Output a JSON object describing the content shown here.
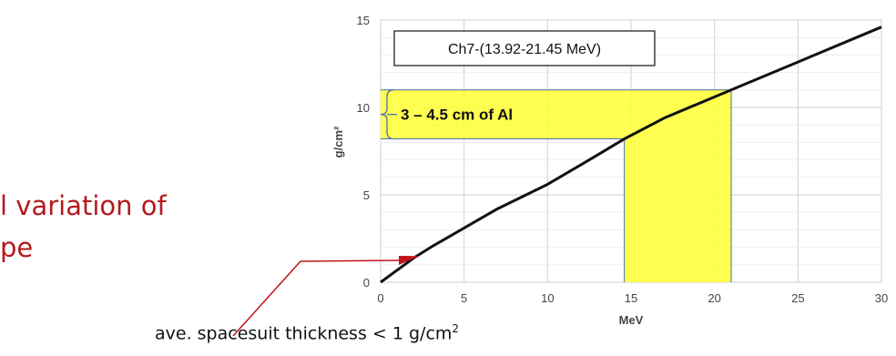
{
  "slide": {
    "text_lines": [
      "l variation of",
      "pe"
    ],
    "text_color": "#b5191d",
    "annotation": {
      "text": "ave. spacesuit thickness < 1 g/cm",
      "superscript": "2",
      "arrow_color": "#c0151a"
    }
  },
  "chart_data": {
    "type": "line",
    "title": "",
    "xlabel": "MeV",
    "ylabel": "g/cm²",
    "xlim": [
      0,
      30
    ],
    "ylim": [
      0,
      15
    ],
    "xticks": [
      0,
      5,
      10,
      15,
      20,
      25,
      30
    ],
    "yticks": [
      0,
      5,
      10,
      15
    ],
    "grid": true,
    "legend_box": "Ch7-(13.92-21.45 MeV)",
    "series": [
      {
        "color": "#111111",
        "x": [
          0,
          1,
          2,
          3,
          5,
          7,
          10,
          12.5,
          14.6,
          17,
          21,
          25,
          30
        ],
        "y": [
          0,
          0.7,
          1.4,
          2.0,
          3.1,
          4.2,
          5.6,
          7.0,
          8.2,
          9.4,
          11.0,
          12.6,
          14.6
        ]
      }
    ],
    "highlight": {
      "color": "#ffff33",
      "x_range": [
        14.6,
        21
      ],
      "y_range": [
        8.2,
        11.0
      ],
      "label": "3 – 4.5 cm of Al"
    }
  }
}
